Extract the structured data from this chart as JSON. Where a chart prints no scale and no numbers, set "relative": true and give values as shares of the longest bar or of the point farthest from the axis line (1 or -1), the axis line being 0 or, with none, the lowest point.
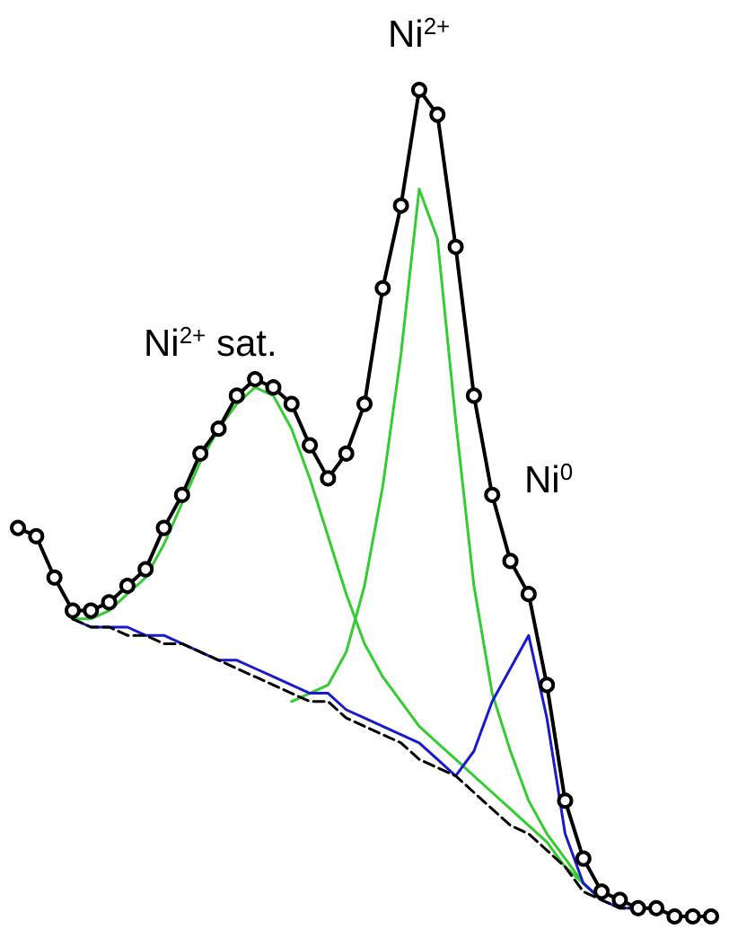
{
  "chart_data": {
    "type": "line",
    "relative": true,
    "line_style": "solid",
    "annotations": [
      "Ni$^{2+}$",
      "Ni$^{2+}$ sat.",
      "Ni$^{0}$"
    ],
    "categories": [
      null,
      null,
      null,
      null,
      null,
      null,
      null,
      null,
      null,
      null,
      null,
      null,
      null,
      null,
      null,
      null,
      null,
      null,
      null,
      null,
      null,
      null,
      null,
      null,
      null,
      null,
      null,
      null,
      null,
      null,
      null,
      null,
      null,
      null,
      null,
      null,
      null,
      null,
      null
    ],
    "series": [
      {
        "color": "#000000",
        "marker": "circle",
        "values": [
          0.47,
          0.46,
          0.41,
          0.37,
          0.37,
          0.38,
          0.4,
          0.42,
          0.47,
          0.51,
          0.56,
          0.59,
          0.63,
          0.65,
          0.64,
          0.62,
          0.57,
          0.53,
          0.56,
          0.62,
          0.76,
          0.86,
          1,
          0.97,
          0.81,
          0.63,
          0.51,
          0.43,
          0.39,
          0.28,
          0.14,
          0.07,
          0.03,
          0.02,
          0.01,
          0.01,
          0,
          0,
          0
        ]
      },
      {
        "color": "#33cc33",
        "values": [
          null,
          null,
          null,
          0.36,
          0.36,
          0.37,
          0.39,
          0.41,
          0.45,
          0.5,
          0.55,
          0.59,
          0.62,
          0.64,
          0.63,
          0.59,
          0.53,
          0.46,
          0.39,
          0.33,
          0.29,
          0.26,
          0.23,
          0.21,
          0.19,
          0.17,
          0.15,
          0.13,
          0.11,
          0.09,
          0.06,
          0.04,
          0.02,
          null,
          null,
          null,
          null,
          null,
          null
        ]
      },
      {
        "color": "#33cc33",
        "values": [
          null,
          null,
          null,
          null,
          null,
          null,
          null,
          null,
          null,
          null,
          null,
          null,
          null,
          null,
          null,
          0.26,
          0.27,
          0.28,
          0.32,
          0.4,
          0.52,
          0.68,
          0.88,
          0.82,
          0.6,
          0.4,
          0.27,
          0.2,
          0.14,
          0.1,
          0.07,
          0.04,
          0.02,
          null,
          null,
          null,
          null,
          null,
          null
        ]
      },
      {
        "color": "#1a1acc",
        "values": [
          null,
          null,
          null,
          0.36,
          0.35,
          0.35,
          0.35,
          0.34,
          0.34,
          0.33,
          0.32,
          0.31,
          0.31,
          0.3,
          0.29,
          0.28,
          0.27,
          0.27,
          0.25,
          0.24,
          0.23,
          0.22,
          0.21,
          0.19,
          0.17,
          0.2,
          0.26,
          0.3,
          0.34,
          0.24,
          0.1,
          0.04,
          0.02,
          0.01,
          0.01,
          0.01,
          null,
          null,
          null
        ]
      },
      {
        "color": "#000000",
        "line_style": "dashed",
        "values": [
          null,
          null,
          null,
          0.36,
          0.35,
          0.35,
          0.34,
          0.34,
          0.33,
          0.33,
          0.32,
          0.31,
          0.3,
          0.29,
          0.28,
          0.27,
          0.26,
          0.26,
          0.24,
          0.23,
          0.22,
          0.21,
          0.19,
          0.18,
          0.17,
          0.15,
          0.13,
          0.11,
          0.1,
          0.08,
          0.06,
          0.03,
          0.02,
          0.01,
          0.01,
          0.01,
          0,
          0,
          0
        ]
      }
    ]
  }
}
